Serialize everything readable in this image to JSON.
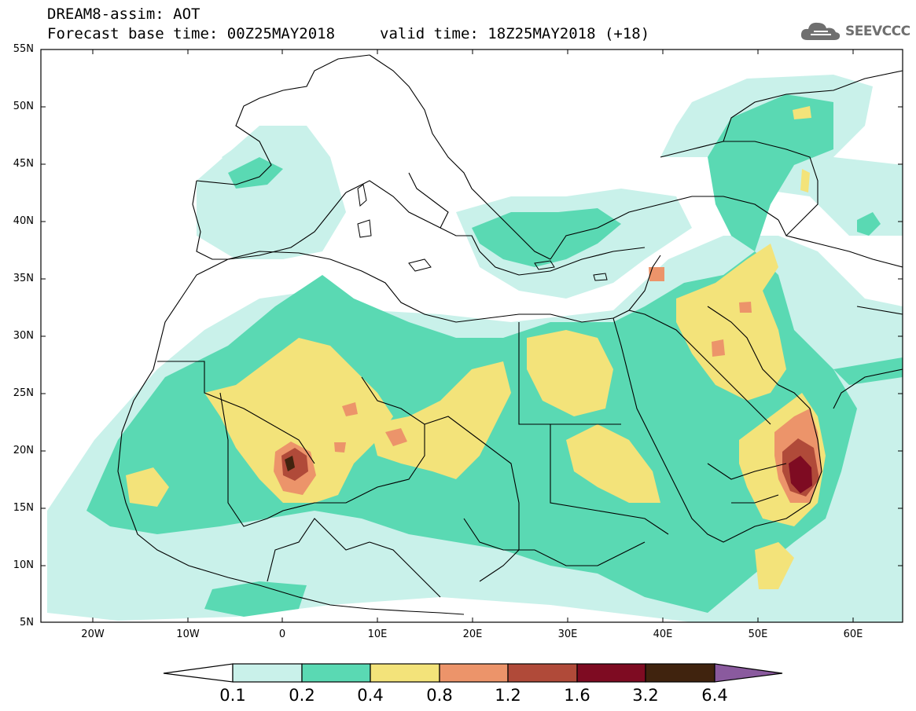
{
  "header": {
    "title": "DREAM8-assim: AOT",
    "base_time": "Forecast base time: 00Z25MAY2018",
    "valid_time": "valid time: 18Z25MAY2018 (+18)"
  },
  "logo": {
    "text": "SEEVCCC",
    "icon": "cloud-icon"
  },
  "map": {
    "lat_ticks": [
      "55N",
      "50N",
      "45N",
      "40N",
      "35N",
      "30N",
      "25N",
      "20N",
      "15N",
      "10N",
      "5N"
    ],
    "lon_ticks": [
      "20W",
      "10W",
      "0",
      "10E",
      "20E",
      "30E",
      "40E",
      "50E",
      "60E"
    ],
    "extent": {
      "lon_min": -25,
      "lon_max": 65,
      "lat_min": 5,
      "lat_max": 55
    }
  },
  "colorbar": {
    "labels": [
      "0.1",
      "0.2",
      "0.4",
      "0.8",
      "1.2",
      "1.6",
      "3.2",
      "6.4"
    ],
    "colors": [
      "#ffffff",
      "#c9f1ea",
      "#5ad9b3",
      "#f3e37a",
      "#ec946a",
      "#b04a39",
      "#7e0b22",
      "#40230e",
      "#8a5a9e"
    ]
  }
}
